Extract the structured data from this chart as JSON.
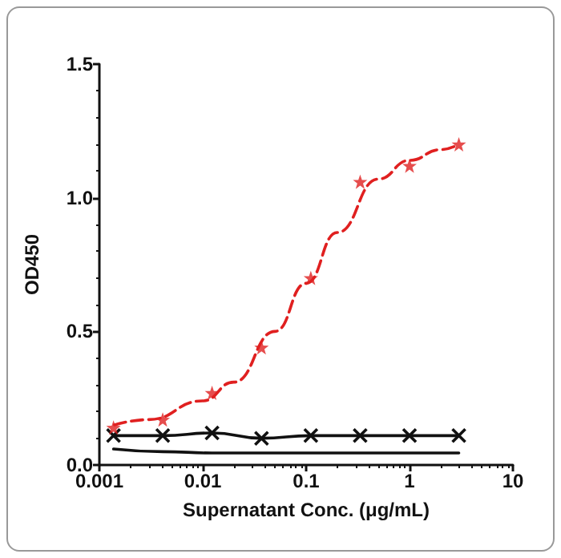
{
  "chart_data": {
    "type": "scatter",
    "xlabel": "Supernatant Conc. (μg/mL)",
    "ylabel": "OD450",
    "log": "x",
    "grid": false,
    "xlim": [
      0.001,
      10
    ],
    "xticks": [
      0.001,
      0.01,
      0.1,
      1,
      10
    ],
    "ylim": [
      0,
      1.5
    ],
    "yticks": [
      {
        "value": 0,
        "label": "0.0"
      },
      {
        "value": 0.5,
        "label": "0.5"
      },
      {
        "value": 1,
        "label": "1.0"
      },
      {
        "value": 1.5,
        "label": "1.5"
      }
    ],
    "x": [
      0.00137,
      0.0041,
      0.0123,
      0.037,
      0.111,
      0.333,
      1,
      3
    ],
    "series": [
      {
        "type": "line",
        "color": "#e02020",
        "line_style": "dashed",
        "marker": "none",
        "x": [
          0.0014,
          0.003,
          0.01,
          0.02,
          0.05,
          0.1,
          0.2,
          0.5,
          1,
          2,
          3
        ],
        "values": [
          0.15,
          0.17,
          0.24,
          0.31,
          0.5,
          0.68,
          0.87,
          1.07,
          1.14,
          1.18,
          1.2
        ]
      },
      {
        "color": "#e02020",
        "marker": "star",
        "values": [
          0.14,
          0.17,
          0.27,
          0.44,
          0.7,
          1.06,
          1.12,
          1.2
        ]
      },
      {
        "type": "line",
        "color": "#111111",
        "line_style": "solid",
        "marker": "cross",
        "values": [
          0.11,
          0.11,
          0.12,
          0.1,
          0.11,
          0.11,
          0.11,
          0.11
        ]
      },
      {
        "type": "line",
        "color": "#111111",
        "line_style": "solid",
        "marker": "none",
        "values": [
          0.06,
          0.05,
          0.045,
          0.045,
          0.045,
          0.045,
          0.045,
          0.045
        ]
      }
    ]
  }
}
